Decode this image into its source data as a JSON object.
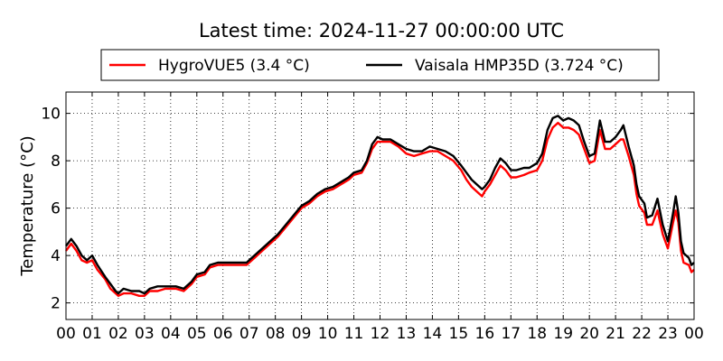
{
  "chart_data": {
    "type": "line",
    "title": "Latest time: 2024-11-27 00:00:00 UTC",
    "xlabel": "",
    "ylabel": "Temperature (°C)",
    "x_unit": "hour (UTC)",
    "xlim": [
      0,
      24
    ],
    "ylim": [
      1.3,
      10.9
    ],
    "x_ticks": [
      0,
      1,
      2,
      3,
      4,
      5,
      6,
      7,
      8,
      9,
      10,
      11,
      12,
      13,
      14,
      15,
      16,
      17,
      18,
      19,
      20,
      21,
      22,
      23,
      24
    ],
    "x_tick_labels": [
      "00",
      "01",
      "02",
      "03",
      "04",
      "05",
      "06",
      "07",
      "08",
      "09",
      "10",
      "11",
      "12",
      "13",
      "14",
      "15",
      "16",
      "17",
      "18",
      "19",
      "20",
      "21",
      "22",
      "23",
      "00"
    ],
    "y_ticks": [
      2,
      4,
      6,
      8,
      10
    ],
    "grid": true,
    "legend_position": "top-center, above plot",
    "series": [
      {
        "name": "HygroVUE5 (3.4 °C)",
        "color": "#ff0000",
        "points": [
          [
            0.0,
            4.2
          ],
          [
            0.2,
            4.5
          ],
          [
            0.4,
            4.2
          ],
          [
            0.6,
            3.8
          ],
          [
            0.8,
            3.7
          ],
          [
            1.0,
            3.8
          ],
          [
            1.2,
            3.4
          ],
          [
            1.5,
            3.0
          ],
          [
            1.7,
            2.6
          ],
          [
            1.9,
            2.4
          ],
          [
            2.0,
            2.3
          ],
          [
            2.2,
            2.4
          ],
          [
            2.5,
            2.4
          ],
          [
            2.8,
            2.3
          ],
          [
            3.0,
            2.3
          ],
          [
            3.2,
            2.5
          ],
          [
            3.5,
            2.5
          ],
          [
            3.8,
            2.6
          ],
          [
            4.0,
            2.6
          ],
          [
            4.2,
            2.6
          ],
          [
            4.5,
            2.5
          ],
          [
            4.8,
            2.8
          ],
          [
            5.0,
            3.1
          ],
          [
            5.3,
            3.2
          ],
          [
            5.5,
            3.5
          ],
          [
            5.8,
            3.6
          ],
          [
            6.0,
            3.6
          ],
          [
            6.3,
            3.6
          ],
          [
            6.6,
            3.6
          ],
          [
            6.9,
            3.6
          ],
          [
            7.2,
            3.9
          ],
          [
            7.5,
            4.2
          ],
          [
            7.8,
            4.5
          ],
          [
            8.1,
            4.8
          ],
          [
            8.4,
            5.2
          ],
          [
            8.7,
            5.6
          ],
          [
            9.0,
            6.0
          ],
          [
            9.3,
            6.2
          ],
          [
            9.6,
            6.5
          ],
          [
            9.9,
            6.7
          ],
          [
            10.2,
            6.8
          ],
          [
            10.5,
            7.0
          ],
          [
            10.8,
            7.2
          ],
          [
            11.0,
            7.4
          ],
          [
            11.3,
            7.5
          ],
          [
            11.5,
            7.9
          ],
          [
            11.7,
            8.5
          ],
          [
            11.9,
            8.8
          ],
          [
            12.1,
            8.8
          ],
          [
            12.4,
            8.8
          ],
          [
            12.7,
            8.6
          ],
          [
            13.0,
            8.3
          ],
          [
            13.3,
            8.2
          ],
          [
            13.6,
            8.3
          ],
          [
            13.9,
            8.4
          ],
          [
            14.2,
            8.4
          ],
          [
            14.5,
            8.2
          ],
          [
            14.8,
            8.0
          ],
          [
            15.1,
            7.6
          ],
          [
            15.3,
            7.2
          ],
          [
            15.5,
            6.9
          ],
          [
            15.7,
            6.7
          ],
          [
            15.9,
            6.5
          ],
          [
            16.0,
            6.7
          ],
          [
            16.2,
            7.0
          ],
          [
            16.4,
            7.4
          ],
          [
            16.6,
            7.8
          ],
          [
            16.8,
            7.6
          ],
          [
            17.0,
            7.3
          ],
          [
            17.2,
            7.3
          ],
          [
            17.5,
            7.4
          ],
          [
            17.7,
            7.5
          ],
          [
            18.0,
            7.6
          ],
          [
            18.2,
            8.0
          ],
          [
            18.4,
            8.9
          ],
          [
            18.6,
            9.4
          ],
          [
            18.8,
            9.6
          ],
          [
            19.0,
            9.4
          ],
          [
            19.2,
            9.4
          ],
          [
            19.4,
            9.3
          ],
          [
            19.6,
            9.1
          ],
          [
            19.8,
            8.5
          ],
          [
            20.0,
            7.9
          ],
          [
            20.2,
            8.0
          ],
          [
            20.4,
            9.3
          ],
          [
            20.6,
            8.5
          ],
          [
            20.8,
            8.5
          ],
          [
            21.0,
            8.7
          ],
          [
            21.2,
            8.9
          ],
          [
            21.3,
            8.9
          ],
          [
            21.5,
            8.2
          ],
          [
            21.7,
            7.4
          ],
          [
            21.8,
            6.6
          ],
          [
            21.9,
            6.1
          ],
          [
            22.1,
            5.8
          ],
          [
            22.2,
            5.3
          ],
          [
            22.4,
            5.3
          ],
          [
            22.6,
            5.9
          ],
          [
            22.8,
            4.9
          ],
          [
            23.0,
            4.3
          ],
          [
            23.2,
            5.4
          ],
          [
            23.3,
            5.9
          ],
          [
            23.4,
            5.4
          ],
          [
            23.5,
            4.2
          ],
          [
            23.6,
            3.7
          ],
          [
            23.8,
            3.6
          ],
          [
            23.9,
            3.3
          ],
          [
            24.0,
            3.4
          ]
        ]
      },
      {
        "name": "Vaisala HMP35D (3.724 °C)",
        "color": "#000000",
        "points": [
          [
            0.0,
            4.4
          ],
          [
            0.2,
            4.7
          ],
          [
            0.4,
            4.4
          ],
          [
            0.6,
            4.0
          ],
          [
            0.8,
            3.8
          ],
          [
            1.0,
            4.0
          ],
          [
            1.2,
            3.6
          ],
          [
            1.5,
            3.1
          ],
          [
            1.7,
            2.8
          ],
          [
            1.9,
            2.5
          ],
          [
            2.0,
            2.4
          ],
          [
            2.2,
            2.6
          ],
          [
            2.5,
            2.5
          ],
          [
            2.8,
            2.5
          ],
          [
            3.0,
            2.4
          ],
          [
            3.2,
            2.6
          ],
          [
            3.5,
            2.7
          ],
          [
            3.8,
            2.7
          ],
          [
            4.0,
            2.7
          ],
          [
            4.2,
            2.7
          ],
          [
            4.5,
            2.6
          ],
          [
            4.8,
            2.9
          ],
          [
            5.0,
            3.2
          ],
          [
            5.3,
            3.3
          ],
          [
            5.5,
            3.6
          ],
          [
            5.8,
            3.7
          ],
          [
            6.0,
            3.7
          ],
          [
            6.3,
            3.7
          ],
          [
            6.6,
            3.7
          ],
          [
            6.9,
            3.7
          ],
          [
            7.2,
            4.0
          ],
          [
            7.5,
            4.3
          ],
          [
            7.8,
            4.6
          ],
          [
            8.1,
            4.9
          ],
          [
            8.4,
            5.3
          ],
          [
            8.7,
            5.7
          ],
          [
            9.0,
            6.1
          ],
          [
            9.3,
            6.3
          ],
          [
            9.6,
            6.6
          ],
          [
            9.9,
            6.8
          ],
          [
            10.2,
            6.9
          ],
          [
            10.5,
            7.1
          ],
          [
            10.8,
            7.3
          ],
          [
            11.0,
            7.5
          ],
          [
            11.3,
            7.6
          ],
          [
            11.5,
            8.0
          ],
          [
            11.7,
            8.7
          ],
          [
            11.9,
            9.0
          ],
          [
            12.1,
            8.9
          ],
          [
            12.4,
            8.9
          ],
          [
            12.7,
            8.7
          ],
          [
            13.0,
            8.5
          ],
          [
            13.3,
            8.4
          ],
          [
            13.6,
            8.4
          ],
          [
            13.9,
            8.6
          ],
          [
            14.2,
            8.5
          ],
          [
            14.5,
            8.4
          ],
          [
            14.8,
            8.2
          ],
          [
            15.1,
            7.8
          ],
          [
            15.3,
            7.5
          ],
          [
            15.5,
            7.2
          ],
          [
            15.7,
            7.0
          ],
          [
            15.9,
            6.8
          ],
          [
            16.0,
            6.9
          ],
          [
            16.2,
            7.2
          ],
          [
            16.4,
            7.7
          ],
          [
            16.6,
            8.1
          ],
          [
            16.8,
            7.9
          ],
          [
            17.0,
            7.6
          ],
          [
            17.2,
            7.6
          ],
          [
            17.5,
            7.7
          ],
          [
            17.7,
            7.7
          ],
          [
            18.0,
            7.9
          ],
          [
            18.2,
            8.3
          ],
          [
            18.4,
            9.3
          ],
          [
            18.6,
            9.8
          ],
          [
            18.8,
            9.9
          ],
          [
            19.0,
            9.7
          ],
          [
            19.2,
            9.8
          ],
          [
            19.4,
            9.7
          ],
          [
            19.6,
            9.5
          ],
          [
            19.8,
            8.8
          ],
          [
            20.0,
            8.2
          ],
          [
            20.2,
            8.3
          ],
          [
            20.4,
            9.7
          ],
          [
            20.6,
            8.8
          ],
          [
            20.8,
            8.8
          ],
          [
            21.0,
            9.0
          ],
          [
            21.2,
            9.3
          ],
          [
            21.3,
            9.5
          ],
          [
            21.5,
            8.6
          ],
          [
            21.7,
            7.8
          ],
          [
            21.8,
            7.0
          ],
          [
            21.9,
            6.5
          ],
          [
            22.1,
            6.2
          ],
          [
            22.2,
            5.6
          ],
          [
            22.4,
            5.7
          ],
          [
            22.6,
            6.4
          ],
          [
            22.8,
            5.3
          ],
          [
            23.0,
            4.6
          ],
          [
            23.2,
            5.8
          ],
          [
            23.3,
            6.5
          ],
          [
            23.4,
            5.8
          ],
          [
            23.5,
            4.6
          ],
          [
            23.6,
            4.1
          ],
          [
            23.8,
            3.9
          ],
          [
            23.9,
            3.6
          ],
          [
            24.0,
            3.7
          ]
        ]
      }
    ]
  }
}
